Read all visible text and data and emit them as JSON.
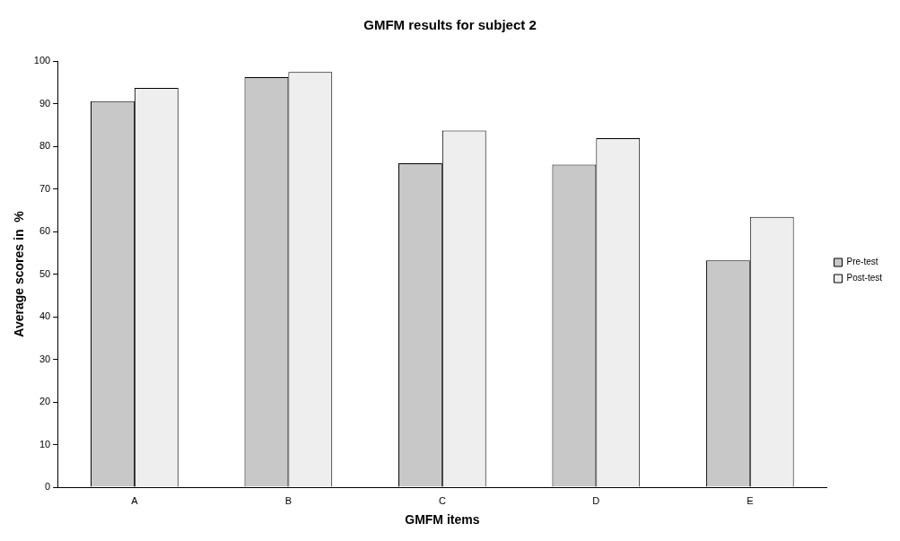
{
  "chart_data": {
    "type": "bar",
    "title": "GMFM results for subject 2",
    "xlabel": "GMFM items",
    "ylabel": "Average scores in  %",
    "categories": [
      "A",
      "B",
      "C",
      "D",
      "E"
    ],
    "series": [
      {
        "name": "Pre-test",
        "color": "#c8c8c8",
        "values": [
          90.6,
          96.2,
          76,
          75.7,
          53.2
        ]
      },
      {
        "name": "Post-test",
        "color": "#eeeeee",
        "values": [
          93.7,
          97.4,
          83.7,
          81.9,
          63.4
        ]
      }
    ],
    "ylim": [
      0,
      100
    ],
    "yticks": [
      0,
      10,
      20,
      30,
      40,
      50,
      60,
      70,
      80,
      90,
      100
    ],
    "grid": false,
    "legend": "right"
  }
}
